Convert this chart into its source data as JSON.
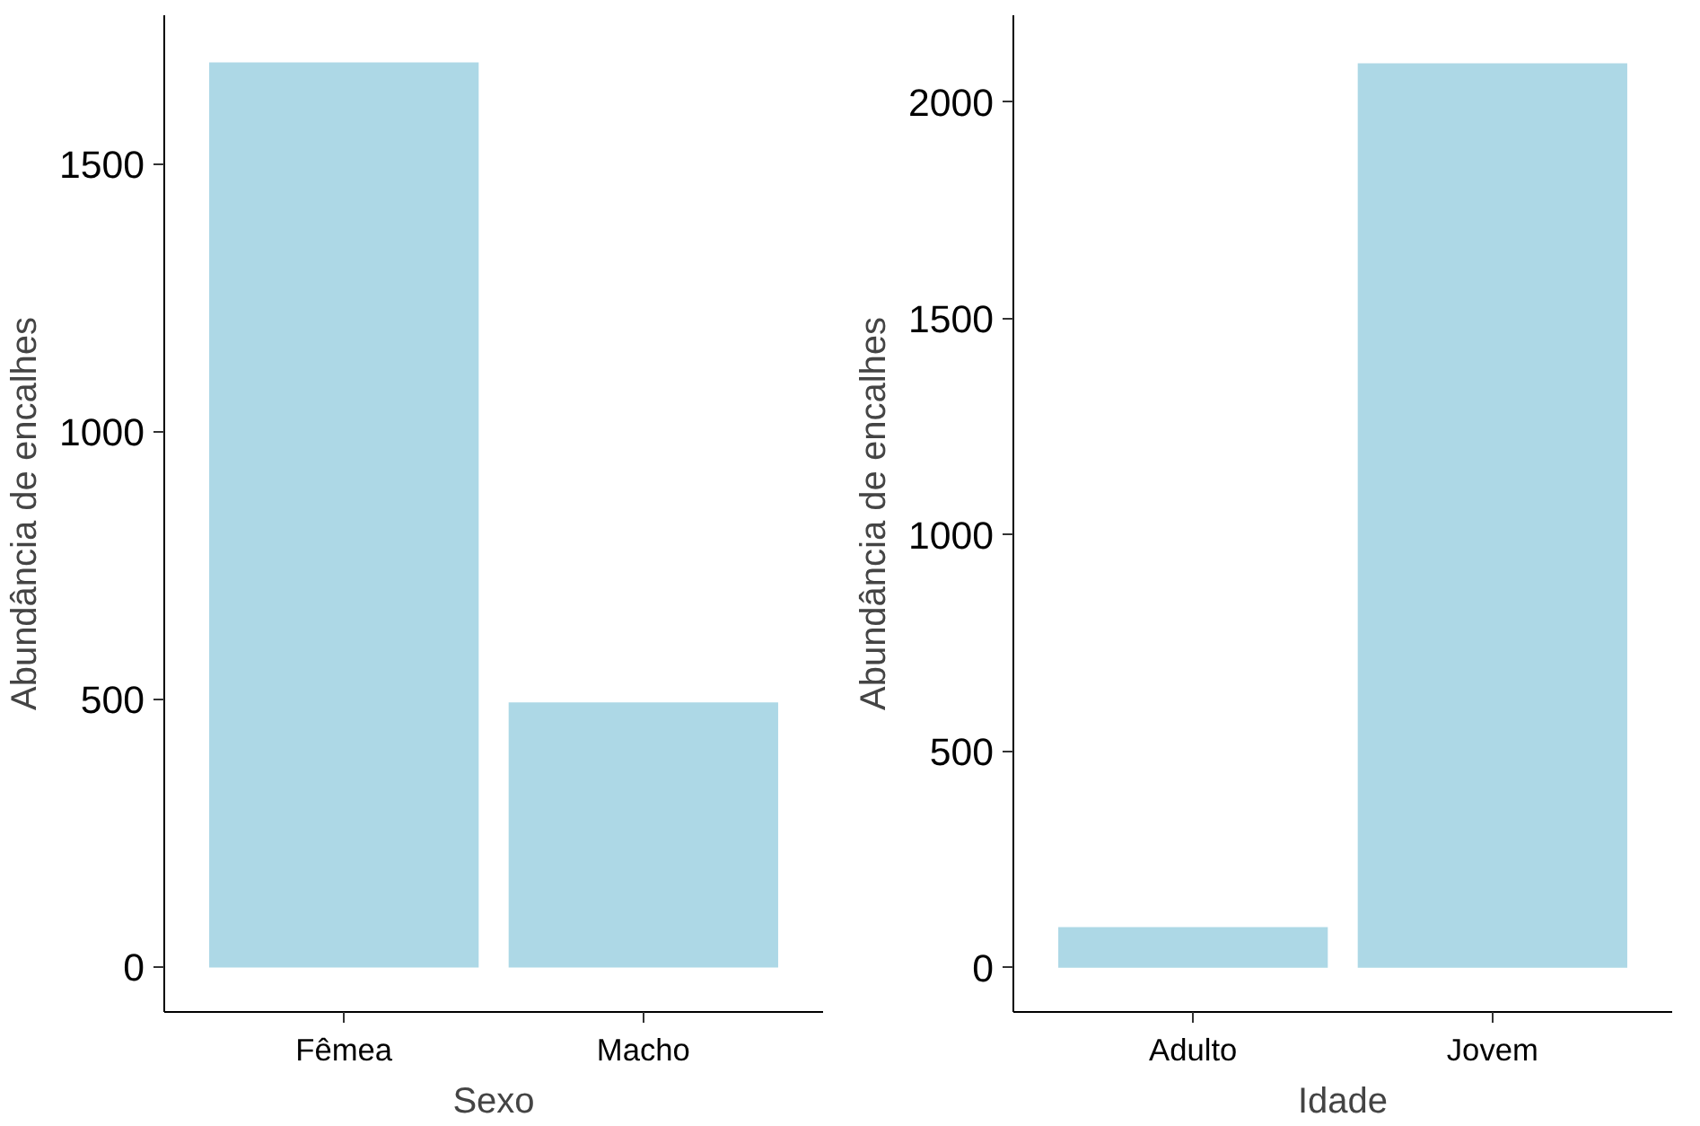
{
  "chart_data": [
    {
      "type": "bar",
      "xlabel": "Sexo",
      "ylabel": "Abundância de encalhes",
      "categories": [
        "Fêmea",
        "Macho"
      ],
      "values": [
        1690,
        495
      ],
      "color": "#add8e6",
      "ylim": [
        -83,
        1778
      ],
      "yticks": [
        0,
        500,
        1000,
        1500
      ],
      "grid": false
    },
    {
      "type": "bar",
      "xlabel": "Idade",
      "ylabel": "Abundância de encalhes",
      "categories": [
        "Adulto",
        "Jovem"
      ],
      "values": [
        94,
        2090
      ],
      "color": "#add8e6",
      "ylim": [
        -102,
        2201
      ],
      "yticks": [
        0,
        500,
        1000,
        1500,
        2000
      ],
      "grid": false
    }
  ]
}
